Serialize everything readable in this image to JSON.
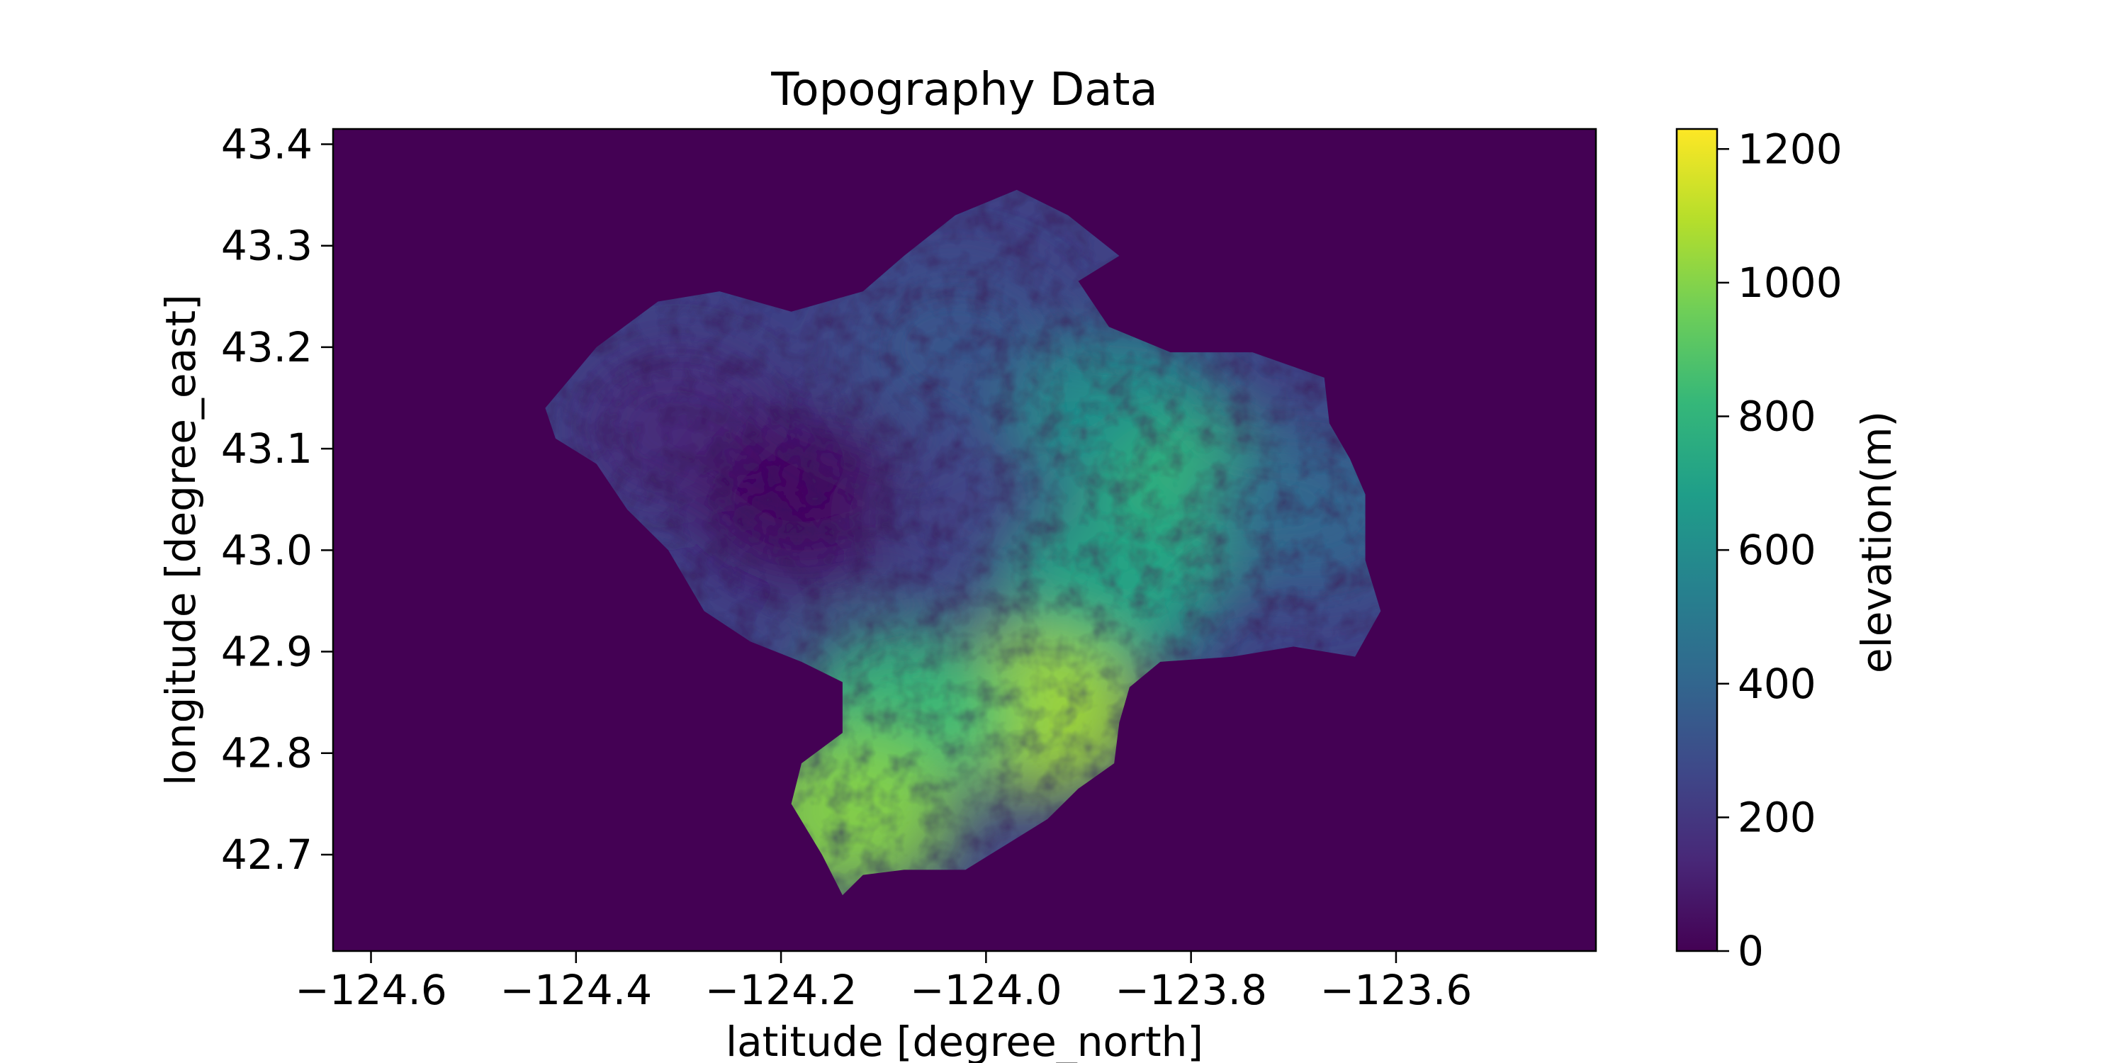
{
  "chart_data": {
    "type": "heatmap",
    "title": "Topography Data",
    "xlabel": "latitude [degree_north]",
    "ylabel": "longitude [degree_east]",
    "xlim": [
      -124.637,
      -123.405
    ],
    "ylim": [
      42.605,
      43.415
    ],
    "x_ticks": [
      -124.6,
      -124.4,
      -124.2,
      -124.0,
      -123.8,
      -123.6
    ],
    "x_tick_labels": [
      "−124.6",
      "−124.4",
      "−124.2",
      "−124.0",
      "−123.8",
      "−123.6"
    ],
    "y_ticks": [
      42.7,
      42.8,
      42.9,
      43.0,
      43.1,
      43.2,
      43.3,
      43.4
    ],
    "y_tick_labels": [
      "42.7",
      "42.8",
      "42.9",
      "43.0",
      "43.1",
      "43.2",
      "43.3",
      "43.4"
    ],
    "grid": false,
    "colormap": "viridis",
    "background_value": 0,
    "colorbar": {
      "label": "elevation(m)",
      "range": [
        0,
        1230
      ],
      "ticks": [
        0,
        200,
        400,
        600,
        800,
        1000,
        1200
      ],
      "tick_labels": [
        "0",
        "200",
        "400",
        "600",
        "800",
        "1000",
        "1200"
      ],
      "colors": [
        "#440154",
        "#482878",
        "#3e4989",
        "#31688e",
        "#26828e",
        "#1f9e89",
        "#35b779",
        "#6ece58",
        "#b5de2b",
        "#fde725"
      ]
    },
    "watershed_outline": [
      [
        -124.32,
        43.245
      ],
      [
        -124.26,
        43.255
      ],
      [
        -124.19,
        43.235
      ],
      [
        -124.12,
        43.255
      ],
      [
        -124.08,
        43.29
      ],
      [
        -124.03,
        43.33
      ],
      [
        -123.97,
        43.355
      ],
      [
        -123.92,
        43.33
      ],
      [
        -123.87,
        43.29
      ],
      [
        -123.91,
        43.265
      ],
      [
        -123.88,
        43.22
      ],
      [
        -123.82,
        43.195
      ],
      [
        -123.74,
        43.195
      ],
      [
        -123.67,
        43.17
      ],
      [
        -123.665,
        43.125
      ],
      [
        -123.645,
        43.09
      ],
      [
        -123.63,
        43.055
      ],
      [
        -123.63,
        42.99
      ],
      [
        -123.615,
        42.94
      ],
      [
        -123.64,
        42.895
      ],
      [
        -123.7,
        42.905
      ],
      [
        -123.76,
        42.895
      ],
      [
        -123.83,
        42.89
      ],
      [
        -123.86,
        42.865
      ],
      [
        -123.87,
        42.83
      ],
      [
        -123.875,
        42.79
      ],
      [
        -123.91,
        42.765
      ],
      [
        -123.94,
        42.735
      ],
      [
        -123.98,
        42.71
      ],
      [
        -124.02,
        42.685
      ],
      [
        -124.08,
        42.685
      ],
      [
        -124.12,
        42.68
      ],
      [
        -124.14,
        42.66
      ],
      [
        -124.16,
        42.7
      ],
      [
        -124.19,
        42.75
      ],
      [
        -124.18,
        42.79
      ],
      [
        -124.14,
        42.82
      ],
      [
        -124.14,
        42.87
      ],
      [
        -124.18,
        42.89
      ],
      [
        -124.23,
        42.91
      ],
      [
        -124.275,
        42.94
      ],
      [
        -124.31,
        43.0
      ],
      [
        -124.35,
        43.04
      ],
      [
        -124.38,
        43.085
      ],
      [
        -124.42,
        43.11
      ],
      [
        -124.43,
        43.14
      ],
      [
        -124.38,
        43.2
      ]
    ],
    "elevation_features": [
      {
        "x": -124.3,
        "y": 43.12,
        "value": 150
      },
      {
        "x": -124.18,
        "y": 43.05,
        "value": 50
      },
      {
        "x": -124.03,
        "y": 43.2,
        "value": 320
      },
      {
        "x": -124.0,
        "y": 43.03,
        "value": 250
      },
      {
        "x": -123.87,
        "y": 43.13,
        "value": 620
      },
      {
        "x": -123.79,
        "y": 43.05,
        "value": 800
      },
      {
        "x": -123.68,
        "y": 43.04,
        "value": 400
      },
      {
        "x": -123.88,
        "y": 42.96,
        "value": 720
      },
      {
        "x": -123.95,
        "y": 42.84,
        "value": 1050
      },
      {
        "x": -124.08,
        "y": 42.84,
        "value": 820
      },
      {
        "x": -124.13,
        "y": 42.74,
        "value": 1000
      }
    ]
  }
}
